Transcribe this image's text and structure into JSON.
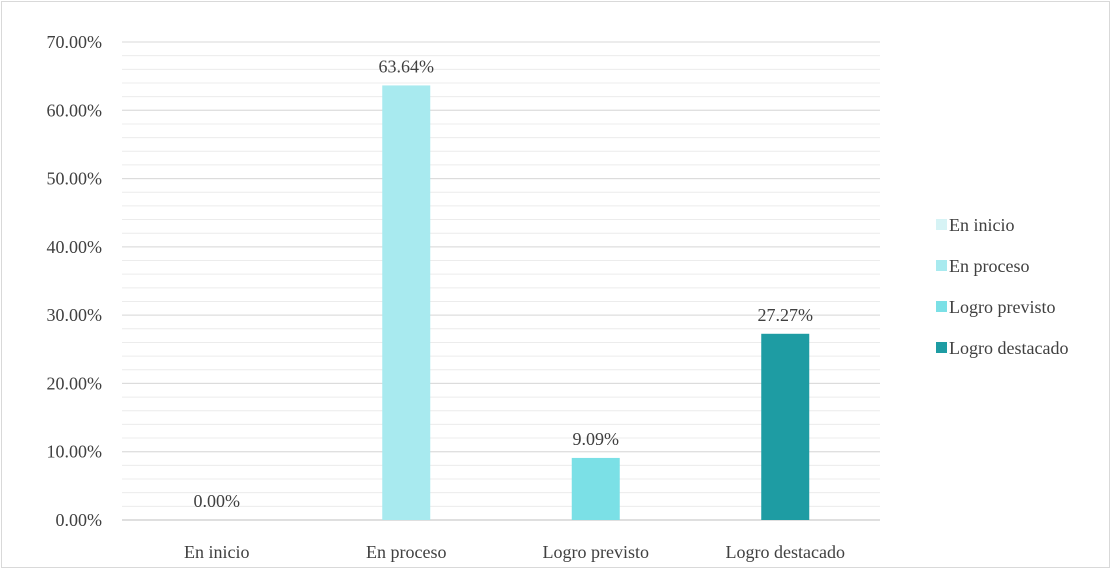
{
  "chart_data": {
    "type": "bar",
    "categories": [
      "En inicio",
      "En proceso",
      "Logro previsto",
      "Logro destacado"
    ],
    "values": [
      0.0,
      63.64,
      9.09,
      27.27
    ],
    "data_labels": [
      "0.00%",
      "63.64%",
      "9.09%",
      "27.27%"
    ],
    "colors": [
      "#d6f3f5",
      "#a8eaef",
      "#7be0e6",
      "#1e9ca3"
    ],
    "ylim": [
      0,
      70
    ],
    "yticks": [
      0,
      10,
      20,
      30,
      40,
      50,
      60,
      70
    ],
    "ytick_labels": [
      "0.00%",
      "10.00%",
      "20.00%",
      "30.00%",
      "40.00%",
      "50.00%",
      "60.00%",
      "70.00%"
    ],
    "legend": {
      "position": "right",
      "entries": [
        "En inicio",
        "En proceso",
        "Logro previsto",
        "Logro destacado"
      ]
    },
    "grid": true,
    "gridline_color": "#d9d9d9",
    "title": "",
    "xlabel": "",
    "ylabel": ""
  }
}
